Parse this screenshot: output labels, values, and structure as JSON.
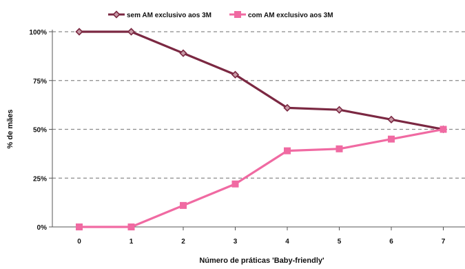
{
  "chart_data": {
    "type": "line",
    "title": "",
    "xlabel": "Número de práticas 'Baby-friendly'",
    "ylabel": "% de mães",
    "x": [
      0,
      1,
      2,
      3,
      4,
      5,
      6,
      7
    ],
    "x_tick_labels": [
      "0",
      "1",
      "2",
      "3",
      "4",
      "5",
      "6",
      "7"
    ],
    "y_tick_labels": [
      "0%",
      "25%",
      "50%",
      "75%",
      "100%"
    ],
    "ylim": [
      0,
      100
    ],
    "grid": "horizontal dashed",
    "legend_position": "top",
    "series": [
      {
        "name": "sem AM exclusivo aos 3M",
        "color": "#7b2842",
        "marker": "diamond",
        "values": [
          100,
          100,
          89,
          78,
          61,
          60,
          55,
          50
        ]
      },
      {
        "name": "com AM exclusivo aos 3M",
        "color": "#f06aa2",
        "marker": "square",
        "values": [
          0,
          0,
          11,
          22,
          39,
          40,
          45,
          50
        ]
      }
    ]
  }
}
